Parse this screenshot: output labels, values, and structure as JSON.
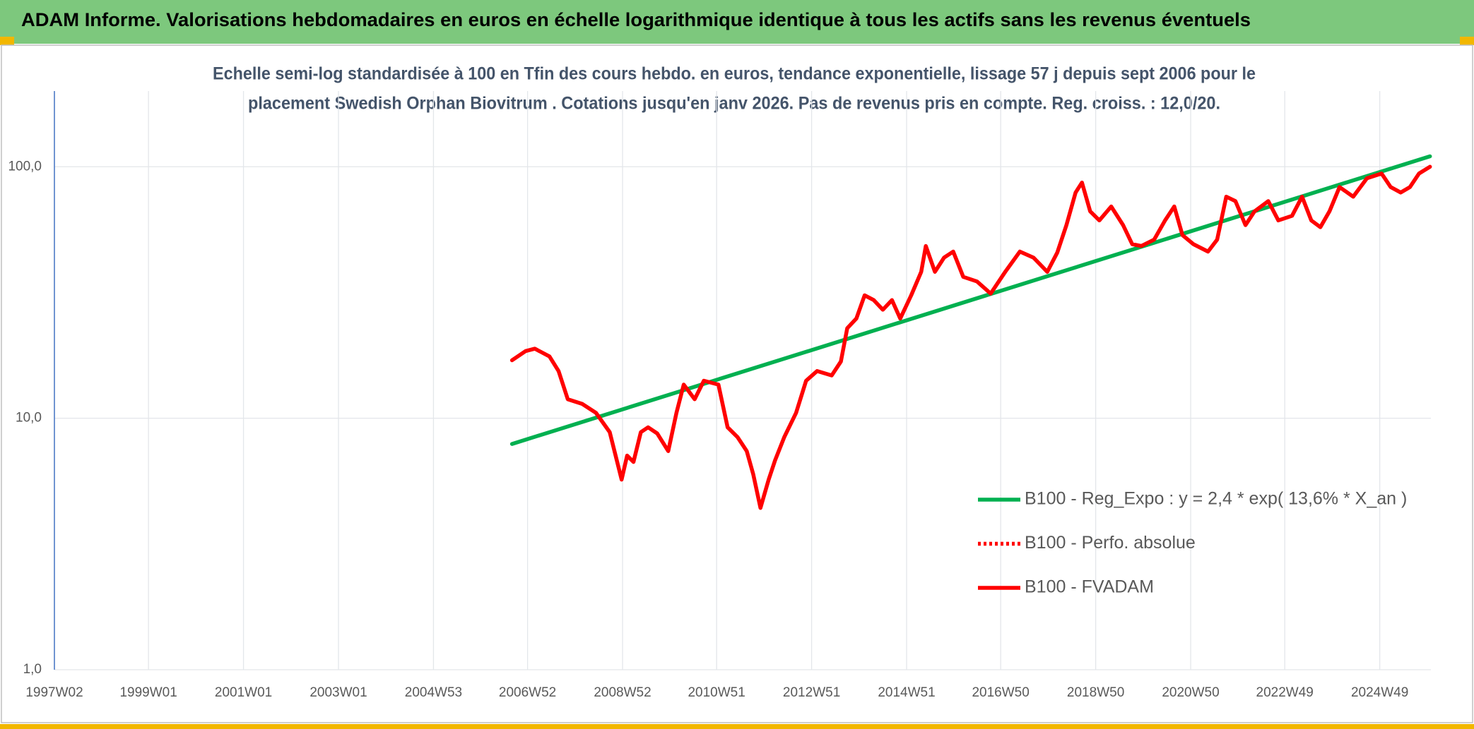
{
  "chart_data": {
    "type": "line",
    "title": "ADAM Informe. Valorisations hebdomadaires en euros en échelle logarithmique identique à tous les actifs sans les revenus éventuels",
    "subtitle": [
      "Echelle semi-log standardisée à 100 en Tfin des cours hebdo. en euros, tendance exponentielle, lissage 57 j depuis sept 2006 pour le",
      "placement Swedish Orphan Biovitrum . Cotations jusqu'en janv 2026. Pas de revenus pris en compte. Reg. croiss. : 12,0/20."
    ],
    "y_scale": "log",
    "grid": true,
    "legend": "right",
    "xlim": [
      "1997W02",
      "2026W01"
    ],
    "xticks": [
      "1997W02",
      "1999W01",
      "2001W01",
      "2003W01",
      "2004W53",
      "2006W52",
      "2008W52",
      "2010W51",
      "2012W51",
      "2014W51",
      "2016W50",
      "2018W50",
      "2020W50",
      "2022W49",
      "2024W49"
    ],
    "ylim": [
      1,
      200
    ],
    "yticks": [
      {
        "value": 1,
        "label": "1,0"
      },
      {
        "value": 10,
        "label": "10,0"
      },
      {
        "value": 100,
        "label": "100,0"
      }
    ],
    "series": [
      {
        "name": "B100 - Reg_Expo : y = 2,4 * exp( 13,6% *  X_an )",
        "color": "#00b050",
        "line_style": "solid",
        "x": [
          "2006W35",
          "2025W52"
        ],
        "values": [
          7.9,
          110
        ]
      },
      {
        "name": "B100 - Perfo. absolue",
        "color": "#ff0000",
        "line_style": "dotted",
        "x": [],
        "values": []
      },
      {
        "name": "B100 - FVADAM",
        "color": "#ff0000",
        "line_style": "solid",
        "x": [
          "2006W35",
          "2006W50",
          "2007W08",
          "2007W24",
          "2007W34",
          "2007W44",
          "2008W08",
          "2008W23",
          "2008W38",
          "2008W51",
          "2009W05",
          "2009W12",
          "2009W20",
          "2009W28",
          "2009W38",
          "2009W50",
          "2010W07",
          "2010W15",
          "2010W27",
          "2010W37",
          "2011W01",
          "2011W11",
          "2011W22",
          "2011W32",
          "2011W39",
          "2011W47",
          "2012W04",
          "2012W11",
          "2012W21",
          "2012W34",
          "2012W45",
          "2013W05",
          "2013W21",
          "2013W31",
          "2013W38",
          "2013W48",
          "2014W05",
          "2014W15",
          "2014W25",
          "2014W35",
          "2014W44",
          "2015W04",
          "2015W15",
          "2015W20",
          "2015W30",
          "2015W40",
          "2015W50",
          "2016W09",
          "2016W24",
          "2016W39",
          "2017W03",
          "2017W19",
          "2017W34",
          "2017W49",
          "2018W08",
          "2018W18",
          "2018W28",
          "2018W35",
          "2018W44",
          "2019W02",
          "2019W15",
          "2019W28",
          "2019W38",
          "2019W48",
          "2020W10",
          "2020W22",
          "2020W32",
          "2020W41",
          "2021W01",
          "2021W17",
          "2021W27",
          "2021W37",
          "2021W47",
          "2022W06",
          "2022W16",
          "2022W31",
          "2022W42",
          "2023W05",
          "2023W16",
          "2023W26",
          "2023W36",
          "2023W46",
          "2024W05",
          "2024W20",
          "2024W35",
          "2024W51",
          "2025W09",
          "2025W20",
          "2025W30",
          "2025W40",
          "2025W52"
        ],
        "values": [
          17,
          18.5,
          18.9,
          17.6,
          15.4,
          11.9,
          11.4,
          10.5,
          8.8,
          5.7,
          7.1,
          6.7,
          8.8,
          9.2,
          8.7,
          7.4,
          10.5,
          13.6,
          11.9,
          14.1,
          13.6,
          9.2,
          8.4,
          7.4,
          6.0,
          4.4,
          5.7,
          6.8,
          8.4,
          10.5,
          14.1,
          15.4,
          14.8,
          16.8,
          22.8,
          24.9,
          30.8,
          29.5,
          27.0,
          29.5,
          24.9,
          30.8,
          38.2,
          48.4,
          38.2,
          43.5,
          46,
          36.5,
          35,
          31.3,
          38.2,
          46,
          43.5,
          38.2,
          45.6,
          58.6,
          79,
          86.5,
          66.5,
          61.2,
          69.5,
          58.6,
          49.2,
          48.4,
          51.3,
          61.2,
          69.5,
          53.5,
          49.2,
          46,
          51.3,
          76,
          73,
          58.6,
          66.5,
          73,
          61.2,
          63.8,
          76,
          61.2,
          57.5,
          66.5,
          83,
          76,
          90,
          94,
          83,
          79,
          83,
          94,
          100
        ]
      }
    ]
  }
}
